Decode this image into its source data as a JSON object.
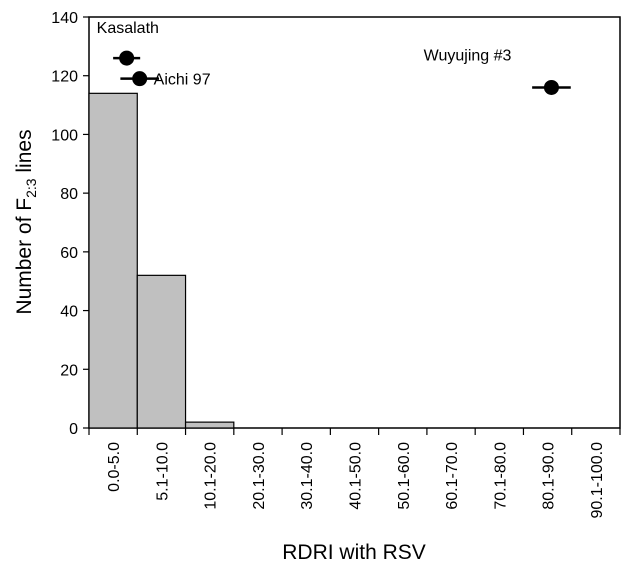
{
  "chart_data": {
    "type": "bar",
    "categories": [
      "0.0-5.0",
      "5.1-10.0",
      "10.1-20.0",
      "20.1-30.0",
      "30.1-40.0",
      "40.1-50.0",
      "50.1-60.0",
      "60.1-70.0",
      "70.1-80.0",
      "80.1-90.0",
      "90.1-100.0"
    ],
    "values": [
      114,
      52,
      2,
      0,
      0,
      0,
      0,
      0,
      0,
      0,
      0
    ],
    "xlabel": "RDRI with RSV",
    "ylabel": {
      "prefix": "Number of F",
      "subscript": "2:3",
      "suffix": " lines"
    },
    "ylim": [
      0,
      140
    ],
    "yticks": [
      0,
      20,
      40,
      60,
      80,
      100,
      120,
      140
    ],
    "grid": false,
    "bar_color": "#c0c0c0",
    "parents": [
      {
        "label": "Kasalath",
        "x": 0.78,
        "xerr": 0.28,
        "y": 126
      },
      {
        "label": "Aichi 97",
        "x": 1.05,
        "xerr": 0.4,
        "y": 119
      },
      {
        "label": "Wuyujing #3",
        "x": 9.58,
        "xerr": 0.4,
        "y": 116
      }
    ]
  }
}
